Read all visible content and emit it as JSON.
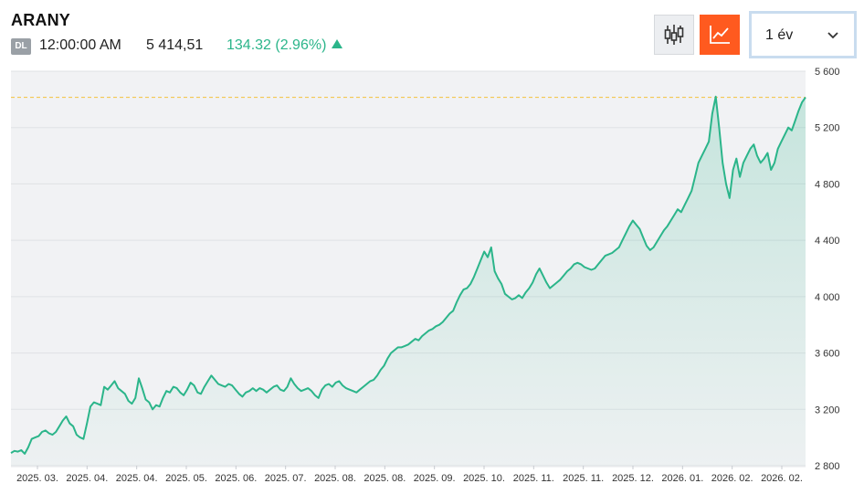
{
  "header": {
    "symbol": "ARANY",
    "source_badge": "DL",
    "time": "12:00:00 AM",
    "price": "5 414,51",
    "change": "134.32 (2.96%)"
  },
  "toolbar": {
    "candlestick_icon": "candlestick-icon",
    "line_chart_icon": "line-chart-icon",
    "period_label": "1 év"
  },
  "colors": {
    "line": "#2bb58a",
    "accent": "#ff5a1f",
    "reference_line": "#f3c23c"
  },
  "chart_data": {
    "type": "area",
    "title": "",
    "xlabel": "",
    "ylabel": "",
    "ylim": [
      2800,
      5600
    ],
    "y_ticks": [
      "5 600",
      "5 200",
      "4 800",
      "4 400",
      "4 000",
      "3 600",
      "3 200",
      "2 800"
    ],
    "x_ticks": [
      "2025. 03.",
      "2025. 04.",
      "2025. 04.",
      "2025. 05.",
      "2025. 06.",
      "2025. 07.",
      "2025. 08.",
      "2025. 08.",
      "2025. 09.",
      "2025. 10.",
      "2025. 11.",
      "2025. 11.",
      "2025. 12.",
      "2026. 01.",
      "2026. 02.",
      "2026. 02."
    ],
    "reference_value": 5414.51,
    "grid": true,
    "series": [
      {
        "values": [
          2890,
          2905,
          2900,
          2910,
          2885,
          2930,
          2990,
          3000,
          3010,
          3040,
          3050,
          3030,
          3020,
          3040,
          3080,
          3120,
          3150,
          3100,
          3080,
          3020,
          3000,
          2990,
          3100,
          3220,
          3250,
          3240,
          3230,
          3360,
          3340,
          3370,
          3400,
          3350,
          3330,
          3310,
          3260,
          3240,
          3280,
          3420,
          3350,
          3270,
          3250,
          3200,
          3230,
          3220,
          3280,
          3330,
          3320,
          3360,
          3350,
          3320,
          3300,
          3340,
          3390,
          3370,
          3320,
          3310,
          3360,
          3400,
          3440,
          3410,
          3380,
          3370,
          3360,
          3380,
          3370,
          3340,
          3310,
          3290,
          3320,
          3330,
          3350,
          3330,
          3350,
          3340,
          3320,
          3340,
          3360,
          3370,
          3340,
          3330,
          3360,
          3420,
          3380,
          3350,
          3330,
          3340,
          3350,
          3330,
          3300,
          3280,
          3340,
          3370,
          3380,
          3360,
          3390,
          3400,
          3370,
          3350,
          3340,
          3330,
          3320,
          3340,
          3360,
          3380,
          3400,
          3410,
          3440,
          3480,
          3510,
          3560,
          3600,
          3620,
          3640,
          3640,
          3650,
          3660,
          3680,
          3700,
          3690,
          3720,
          3740,
          3760,
          3770,
          3790,
          3800,
          3820,
          3850,
          3880,
          3900,
          3960,
          4010,
          4050,
          4060,
          4090,
          4140,
          4200,
          4260,
          4320,
          4280,
          4350,
          4180,
          4130,
          4090,
          4020,
          4000,
          3980,
          3990,
          4010,
          3990,
          4030,
          4060,
          4100,
          4160,
          4200,
          4150,
          4100,
          4060,
          4080,
          4100,
          4120,
          4150,
          4180,
          4200,
          4230,
          4240,
          4230,
          4210,
          4200,
          4190,
          4200,
          4230,
          4260,
          4290,
          4300,
          4310,
          4330,
          4350,
          4400,
          4450,
          4500,
          4540,
          4510,
          4480,
          4420,
          4360,
          4330,
          4350,
          4390,
          4430,
          4470,
          4500,
          4540,
          4580,
          4620,
          4600,
          4650,
          4700,
          4750,
          4850,
          4950,
          5000,
          5050,
          5100,
          5300,
          5420,
          5200,
          4950,
          4800,
          4700,
          4900,
          4980,
          4850,
          4950,
          5000,
          5050,
          5080,
          5000,
          4950,
          4980,
          5020,
          4900,
          4950,
          5050,
          5100,
          5150,
          5200,
          5180,
          5250,
          5320,
          5380,
          5414.51
        ]
      }
    ]
  }
}
